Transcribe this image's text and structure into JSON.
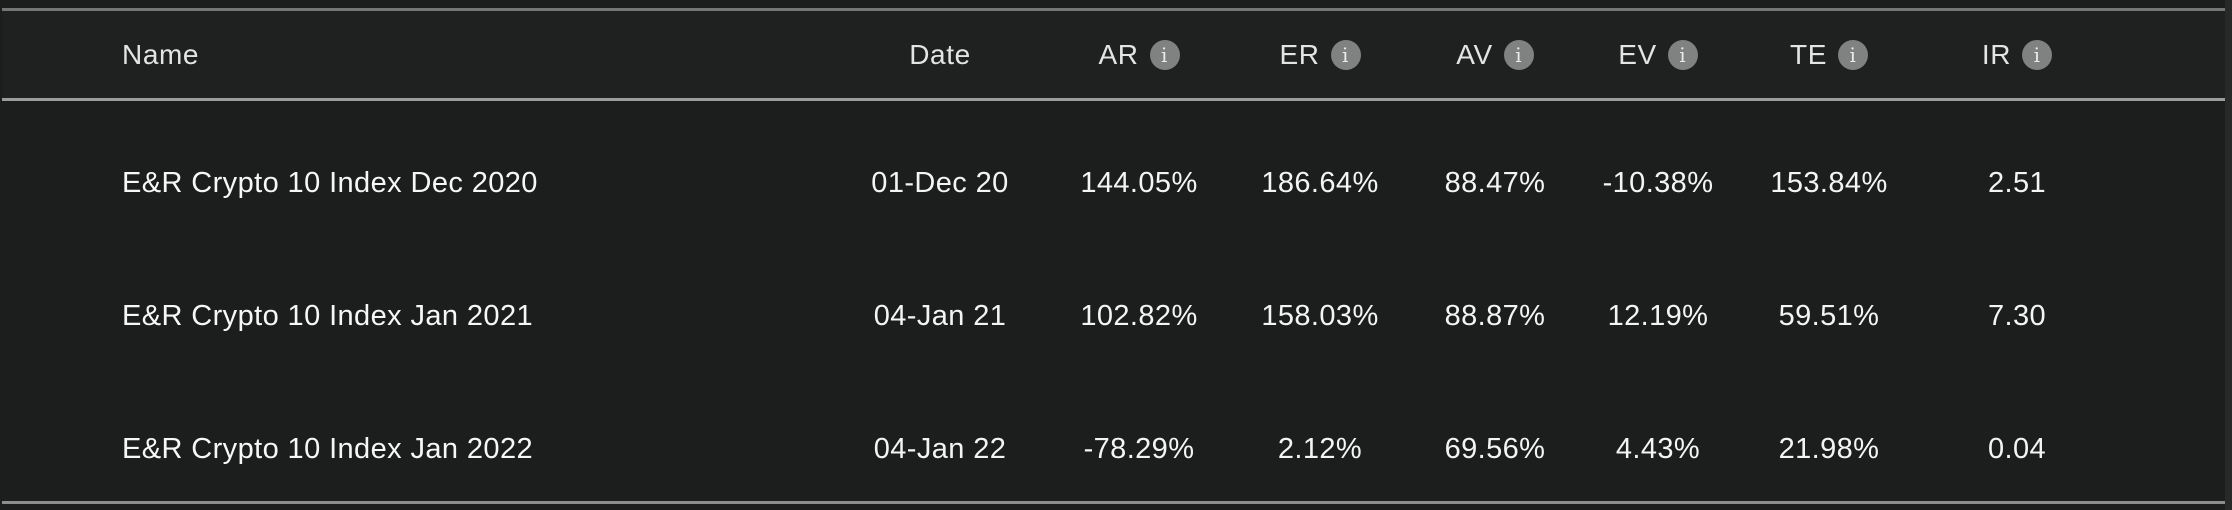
{
  "table": {
    "info_icon_glyph": "i",
    "columns": [
      {
        "key": "name",
        "label": "Name",
        "has_info": false
      },
      {
        "key": "date",
        "label": "Date",
        "has_info": false
      },
      {
        "key": "ar",
        "label": "AR",
        "has_info": true
      },
      {
        "key": "er",
        "label": "ER",
        "has_info": true
      },
      {
        "key": "av",
        "label": "AV",
        "has_info": true
      },
      {
        "key": "ev",
        "label": "EV",
        "has_info": true
      },
      {
        "key": "te",
        "label": "TE",
        "has_info": true
      },
      {
        "key": "ir",
        "label": "IR",
        "has_info": true
      }
    ],
    "rows": [
      {
        "name": "E&R Crypto 10 Index Dec 2020",
        "date": "01-Dec 20",
        "ar": "144.05%",
        "er": "186.64%",
        "av": "88.47%",
        "ev": "-10.38%",
        "te": "153.84%",
        "ir": "2.51"
      },
      {
        "name": "E&R Crypto 10 Index Jan 2021",
        "date": "04-Jan 21",
        "ar": "102.82%",
        "er": "158.03%",
        "av": "88.87%",
        "ev": "12.19%",
        "te": "59.51%",
        "ir": "7.30"
      },
      {
        "name": "E&R Crypto 10 Index Jan 2022",
        "date": "04-Jan 22",
        "ar": "-78.29%",
        "er": "2.12%",
        "av": "69.56%",
        "ev": "4.43%",
        "te": "21.98%",
        "ir": "0.04"
      }
    ]
  },
  "colors": {
    "page_background": "#1c1d1d",
    "panel_background": "#1c1d1d",
    "header_background": "#1f2020",
    "right_gutter": "#272828",
    "hairline_top": "#747575",
    "hairline_header": "#9c9c9c",
    "hairline_bottom": "#8d8d8d",
    "header_text": "#e4e4e4",
    "cell_text": "#f4f4f4",
    "info_icon_background": "#808181"
  }
}
